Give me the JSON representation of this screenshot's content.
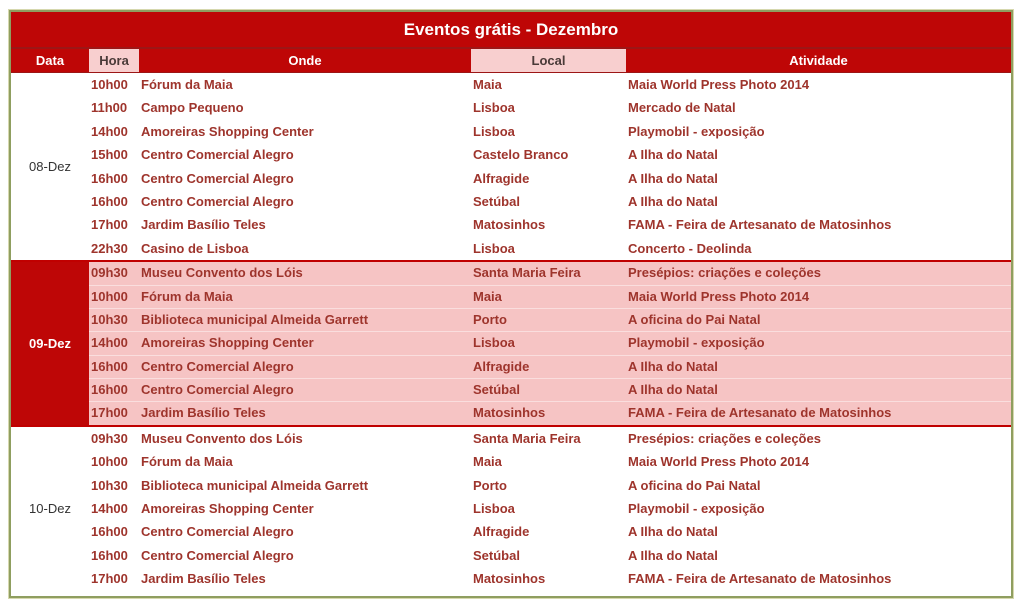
{
  "title": "Eventos grátis - Dezembro",
  "columns": [
    "Data",
    "Hora",
    "Onde",
    "Local",
    "Atividade"
  ],
  "colors": {
    "header_red": "#BE0606",
    "separator_red": "#C00000",
    "highlight_pink": "#F6C4C4",
    "header_cell_pink": "#F8CFCF",
    "text_maroon": "#9E342C",
    "date_text": "#333333",
    "border_olive": "#8F9E60",
    "title_text": "#FFFFFF"
  },
  "blocks": [
    {
      "date": "08-Dez",
      "highlighted": false,
      "rows": [
        {
          "hora": "10h00",
          "onde": "Fórum da Maia",
          "local": "Maia",
          "atividade": "Maia World Press Photo 2014"
        },
        {
          "hora": "11h00",
          "onde": "Campo Pequeno",
          "local": "Lisboa",
          "atividade": "Mercado de Natal"
        },
        {
          "hora": "14h00",
          "onde": "Amoreiras Shopping Center",
          "local": "Lisboa",
          "atividade": "Playmobil - exposição"
        },
        {
          "hora": "15h00",
          "onde": "Centro Comercial Alegro",
          "local": "Castelo Branco",
          "atividade": "A Ilha do Natal"
        },
        {
          "hora": "16h00",
          "onde": "Centro Comercial Alegro",
          "local": "Alfragide",
          "atividade": "A Ilha do Natal"
        },
        {
          "hora": "16h00",
          "onde": "Centro Comercial Alegro",
          "local": "Setúbal",
          "atividade": "A Ilha do Natal"
        },
        {
          "hora": "17h00",
          "onde": "Jardim Basílio Teles",
          "local": "Matosinhos",
          "atividade": "FAMA - Feira de Artesanato de Matosinhos"
        },
        {
          "hora": "22h30",
          "onde": "Casino de Lisboa",
          "local": "Lisboa",
          "atividade": "Concerto - Deolinda"
        }
      ]
    },
    {
      "date": "09-Dez",
      "highlighted": true,
      "rows": [
        {
          "hora": "09h30",
          "onde": "Museu Convento dos Lóis",
          "local": "Santa Maria Feira",
          "atividade": "Presépios: criações e coleções"
        },
        {
          "hora": "10h00",
          "onde": "Fórum da Maia",
          "local": "Maia",
          "atividade": "Maia World Press Photo 2014"
        },
        {
          "hora": "10h30",
          "onde": "Biblioteca municipal Almeida Garrett",
          "local": "Porto",
          "atividade": "A oficina do Pai Natal"
        },
        {
          "hora": "14h00",
          "onde": "Amoreiras Shopping Center",
          "local": "Lisboa",
          "atividade": "Playmobil - exposição"
        },
        {
          "hora": "16h00",
          "onde": "Centro Comercial Alegro",
          "local": "Alfragide",
          "atividade": "A Ilha do Natal"
        },
        {
          "hora": "16h00",
          "onde": "Centro Comercial Alegro",
          "local": "Setúbal",
          "atividade": "A Ilha do Natal"
        },
        {
          "hora": "17h00",
          "onde": "Jardim Basílio Teles",
          "local": "Matosinhos",
          "atividade": "FAMA - Feira de Artesanato de Matosinhos"
        }
      ]
    },
    {
      "date": "10-Dez",
      "highlighted": false,
      "rows": [
        {
          "hora": "09h30",
          "onde": "Museu Convento dos Lóis",
          "local": "Santa Maria Feira",
          "atividade": "Presépios: criações e coleções"
        },
        {
          "hora": "10h00",
          "onde": "Fórum da Maia",
          "local": "Maia",
          "atividade": "Maia World Press Photo 2014"
        },
        {
          "hora": "10h30",
          "onde": "Biblioteca municipal Almeida Garrett",
          "local": "Porto",
          "atividade": "A oficina do Pai Natal"
        },
        {
          "hora": "14h00",
          "onde": "Amoreiras Shopping Center",
          "local": "Lisboa",
          "atividade": "Playmobil - exposição"
        },
        {
          "hora": "16h00",
          "onde": "Centro Comercial Alegro",
          "local": "Alfragide",
          "atividade": "A Ilha do Natal"
        },
        {
          "hora": "16h00",
          "onde": "Centro Comercial Alegro",
          "local": "Setúbal",
          "atividade": "A Ilha do Natal"
        },
        {
          "hora": "17h00",
          "onde": "Jardim Basílio Teles",
          "local": "Matosinhos",
          "atividade": "FAMA - Feira de Artesanato de Matosinhos"
        }
      ]
    }
  ]
}
